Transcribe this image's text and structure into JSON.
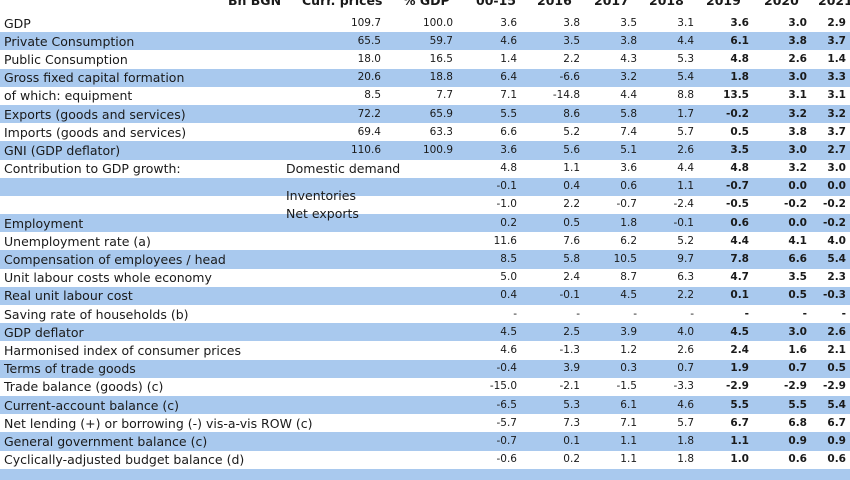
{
  "header": {
    "bn": "Bn BGN",
    "curr": "Curr. prices",
    "pct": "% GDP",
    "y0015": "00-15",
    "y2016": "2016",
    "y2017": "2017",
    "y2018": "2018",
    "y2019": "2019",
    "y2020": "2020",
    "y2021": "2021"
  },
  "rows": [
    {
      "label": "GDP",
      "sub": "",
      "band": false,
      "vals": [
        "109.7",
        "100.0",
        "3.6",
        "3.8",
        "3.5",
        "3.1",
        "3.6",
        "3.0",
        "2.9"
      ]
    },
    {
      "label": "Private Consumption",
      "sub": "",
      "band": true,
      "vals": [
        "65.5",
        "59.7",
        "4.6",
        "3.5",
        "3.8",
        "4.4",
        "6.1",
        "3.8",
        "3.7"
      ]
    },
    {
      "label": "Public Consumption",
      "sub": "",
      "band": false,
      "vals": [
        "18.0",
        "16.5",
        "1.4",
        "2.2",
        "4.3",
        "5.3",
        "4.8",
        "2.6",
        "1.4"
      ]
    },
    {
      "label": "Gross fixed capital formation",
      "sub": "",
      "band": true,
      "vals": [
        "20.6",
        "18.8",
        "6.4",
        "-6.6",
        "3.2",
        "5.4",
        "1.8",
        "3.0",
        "3.3"
      ]
    },
    {
      "label": "of which: equipment",
      "sub": "",
      "band": false,
      "vals": [
        "8.5",
        "7.7",
        "7.1",
        "-14.8",
        "4.4",
        "8.8",
        "13.5",
        "3.1",
        "3.1"
      ]
    },
    {
      "label": "Exports (goods and services)",
      "sub": "",
      "band": true,
      "vals": [
        "72.2",
        "65.9",
        "5.5",
        "8.6",
        "5.8",
        "1.7",
        "-0.2",
        "3.2",
        "3.2"
      ]
    },
    {
      "label": "Imports (goods and services)",
      "sub": "",
      "band": false,
      "vals": [
        "69.4",
        "63.3",
        "6.6",
        "5.2",
        "7.4",
        "5.7",
        "0.5",
        "3.8",
        "3.7"
      ]
    },
    {
      "label": "GNI (GDP deflator)",
      "sub": "",
      "band": true,
      "vals": [
        "110.6",
        "100.9",
        "3.6",
        "5.6",
        "5.1",
        "2.6",
        "3.5",
        "3.0",
        "2.7"
      ]
    },
    {
      "label": "Contribution to GDP growth:",
      "sub": "Domestic demand",
      "band": false,
      "vals": [
        "",
        "",
        "4.8",
        "1.1",
        "3.6",
        "4.4",
        "4.8",
        "3.2",
        "3.0"
      ]
    },
    {
      "label": "",
      "sub": "Inventories",
      "band": true,
      "vals": [
        "",
        "",
        "-0.1",
        "0.4",
        "0.6",
        "1.1",
        "-0.7",
        "0.0",
        "0.0"
      ]
    },
    {
      "label": "",
      "sub": "Net exports",
      "band": false,
      "vals": [
        "",
        "",
        "-1.0",
        "2.2",
        "-0.7",
        "-2.4",
        "-0.5",
        "-0.2",
        "-0.2"
      ]
    },
    {
      "label": "Employment",
      "sub": "",
      "band": true,
      "vals": [
        "",
        "",
        "0.2",
        "0.5",
        "1.8",
        "-0.1",
        "0.6",
        "0.0",
        "-0.2"
      ]
    },
    {
      "label": "Unemployment rate (a)",
      "sub": "",
      "band": false,
      "vals": [
        "",
        "",
        "11.6",
        "7.6",
        "6.2",
        "5.2",
        "4.4",
        "4.1",
        "4.0"
      ]
    },
    {
      "label": "Compensation of employees / head",
      "sub": "",
      "band": true,
      "vals": [
        "",
        "",
        "8.5",
        "5.8",
        "10.5",
        "9.7",
        "7.8",
        "6.6",
        "5.4"
      ]
    },
    {
      "label": "Unit labour costs whole economy",
      "sub": "",
      "band": false,
      "vals": [
        "",
        "",
        "5.0",
        "2.4",
        "8.7",
        "6.3",
        "4.7",
        "3.5",
        "2.3"
      ]
    },
    {
      "label": "Real unit labour cost",
      "sub": "",
      "band": true,
      "vals": [
        "",
        "",
        "0.4",
        "-0.1",
        "4.5",
        "2.2",
        "0.1",
        "0.5",
        "-0.3"
      ]
    },
    {
      "label": "Saving rate of households (b)",
      "sub": "",
      "band": false,
      "vals": [
        "",
        "",
        "-",
        "-",
        "-",
        "-",
        "-",
        "-",
        "-"
      ]
    },
    {
      "label": "GDP deflator",
      "sub": "",
      "band": true,
      "vals": [
        "",
        "",
        "4.5",
        "2.5",
        "3.9",
        "4.0",
        "4.5",
        "3.0",
        "2.6"
      ]
    },
    {
      "label": "Harmonised index of consumer prices",
      "sub": "",
      "band": false,
      "vals": [
        "",
        "",
        "4.6",
        "-1.3",
        "1.2",
        "2.6",
        "2.4",
        "1.6",
        "2.1"
      ]
    },
    {
      "label": "Terms of trade goods",
      "sub": "",
      "band": true,
      "vals": [
        "",
        "",
        "-0.4",
        "3.9",
        "0.3",
        "0.7",
        "1.9",
        "0.7",
        "0.5"
      ]
    },
    {
      "label": "Trade balance (goods) (c)",
      "sub": "",
      "band": false,
      "vals": [
        "",
        "",
        "-15.0",
        "-2.1",
        "-1.5",
        "-3.3",
        "-2.9",
        "-2.9",
        "-2.9"
      ]
    },
    {
      "label": "Current-account balance (c)",
      "sub": "",
      "band": true,
      "vals": [
        "",
        "",
        "-6.5",
        "5.3",
        "6.1",
        "4.6",
        "5.5",
        "5.5",
        "5.4"
      ]
    },
    {
      "label": "Net lending (+) or borrowing (-) vis-a-vis ROW (c)",
      "sub": "",
      "band": false,
      "vals": [
        "",
        "",
        "-5.7",
        "7.3",
        "7.1",
        "5.7",
        "6.7",
        "6.8",
        "6.7"
      ]
    },
    {
      "label": "General government balance (c)",
      "sub": "",
      "band": true,
      "vals": [
        "",
        "",
        "-0.7",
        "0.1",
        "1.1",
        "1.8",
        "1.1",
        "0.9",
        "0.9"
      ]
    },
    {
      "label": "Cyclically-adjusted budget balance (d)",
      "sub": "",
      "band": false,
      "vals": [
        "",
        "",
        "-0.6",
        "0.2",
        "1.1",
        "1.8",
        "1.0",
        "0.6",
        "0.6"
      ]
    },
    {
      "label": "",
      "sub": "",
      "band": true,
      "vals": [
        "",
        "",
        "",
        "",
        "",
        "",
        "",
        "",
        ""
      ]
    }
  ]
}
